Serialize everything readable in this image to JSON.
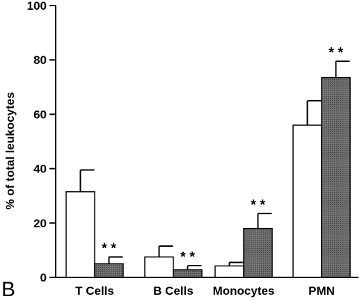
{
  "panel_label": "B",
  "chart_data": {
    "type": "bar",
    "ylabel": "% of total leukocytes",
    "xlabel": "",
    "ylim": [
      0,
      100
    ],
    "yticks": [
      "0",
      "20",
      "40",
      "60",
      "80",
      "100"
    ],
    "categories": [
      "T Cells",
      "B Cells",
      "Monocytes",
      "PMN"
    ],
    "series": [
      {
        "fill": "#ffffff",
        "values": [
          31.5,
          7.5,
          4.2,
          56
        ],
        "errors": [
          8,
          4,
          1.3,
          9
        ]
      },
      {
        "fill": "#5c5c5c",
        "values": [
          5,
          2.8,
          18,
          73.5
        ],
        "errors": [
          2.5,
          1.5,
          5.5,
          6
        ]
      }
    ],
    "significance": [
      {
        "category_index": 0,
        "series_index": 1,
        "label": "* *"
      },
      {
        "category_index": 1,
        "series_index": 1,
        "label": "* *"
      },
      {
        "category_index": 2,
        "series_index": 1,
        "label": "* *"
      },
      {
        "category_index": 3,
        "series_index": 1,
        "label": "* *"
      }
    ]
  }
}
